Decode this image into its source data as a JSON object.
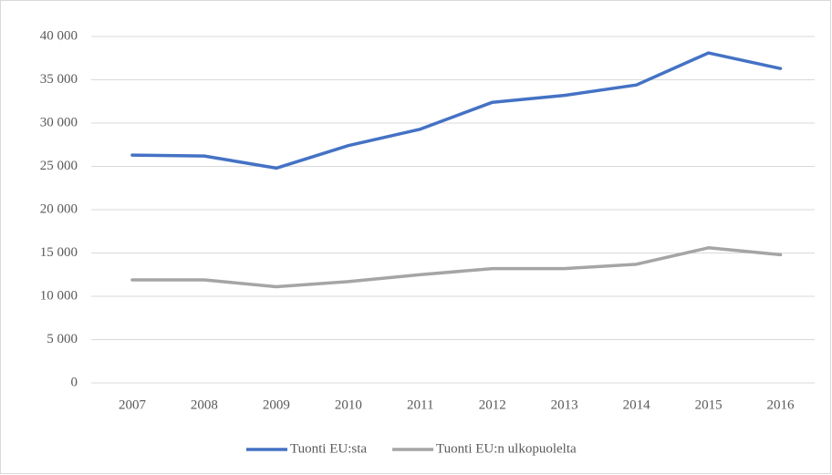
{
  "chart_data": {
    "type": "line",
    "categories": [
      "2007",
      "2008",
      "2009",
      "2010",
      "2011",
      "2012",
      "2013",
      "2014",
      "2015",
      "2016"
    ],
    "series": [
      {
        "name": "Tuonti EU:sta",
        "color": "#4472c4",
        "values": [
          26300,
          26200,
          24800,
          27400,
          29300,
          32400,
          33200,
          34400,
          38100,
          36300
        ]
      },
      {
        "name": "Tuonti EU:n ulkopuolelta",
        "color": "#a5a5a5",
        "values": [
          11900,
          11900,
          11100,
          11700,
          12500,
          13200,
          13200,
          13700,
          15600,
          14800
        ]
      }
    ],
    "ylim": [
      0,
      40000
    ],
    "yticks": [
      0,
      {
        "value": 5000,
        "label": "5 000"
      },
      {
        "value": 10000,
        "label": "10 000"
      },
      {
        "value": 15000,
        "label": "15 000"
      },
      {
        "value": 20000,
        "label": "20 000"
      },
      {
        "value": 25000,
        "label": "25 000"
      },
      {
        "value": 30000,
        "label": "30 000"
      },
      {
        "value": 35000,
        "label": "35 000"
      },
      {
        "value": 40000,
        "label": "40 000"
      }
    ],
    "grid": true,
    "legend": "bottom"
  }
}
